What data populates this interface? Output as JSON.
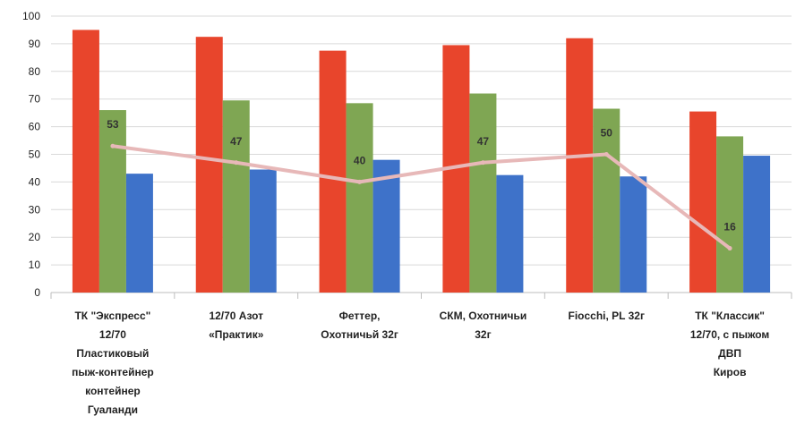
{
  "chart_data": {
    "type": "bar",
    "categories": [
      [
        "ТК \"Экспресс\"",
        "12/70",
        "Пластиковый",
        "пыж-контейнер",
        "контейнер",
        "Гуаланди"
      ],
      [
        "12/70 Азот",
        "«Практик»"
      ],
      [
        "Феттер,",
        "Охотничьй 32г"
      ],
      [
        "СКМ, Охотничьи",
        "32г"
      ],
      [
        "Fiocchi, PL 32г"
      ],
      [
        "ТК \"Классик\"",
        "12/70, с пыжом",
        "ДВП",
        "Киров"
      ]
    ],
    "series": [
      {
        "values": [
          95,
          92.5,
          87.5,
          89.5,
          92,
          65.5
        ],
        "color": "#E8452C"
      },
      {
        "values": [
          66,
          69.5,
          68.5,
          72,
          66.5,
          56.5
        ],
        "color": "#7FA653"
      },
      {
        "values": [
          43,
          44.5,
          48,
          42.5,
          42,
          49.5
        ],
        "color": "#3E72C9"
      }
    ],
    "line": {
      "values": [
        53,
        47,
        40,
        47,
        50,
        16
      ],
      "labels": [
        "53",
        "47",
        "40",
        "47",
        "50",
        "16"
      ],
      "color": "#E7B8B8"
    },
    "yticks": [
      "0",
      "10",
      "20",
      "30",
      "40",
      "50",
      "60",
      "70",
      "80",
      "90",
      "100"
    ],
    "ylim": [
      0,
      100
    ],
    "grid": true,
    "legend": "none"
  }
}
